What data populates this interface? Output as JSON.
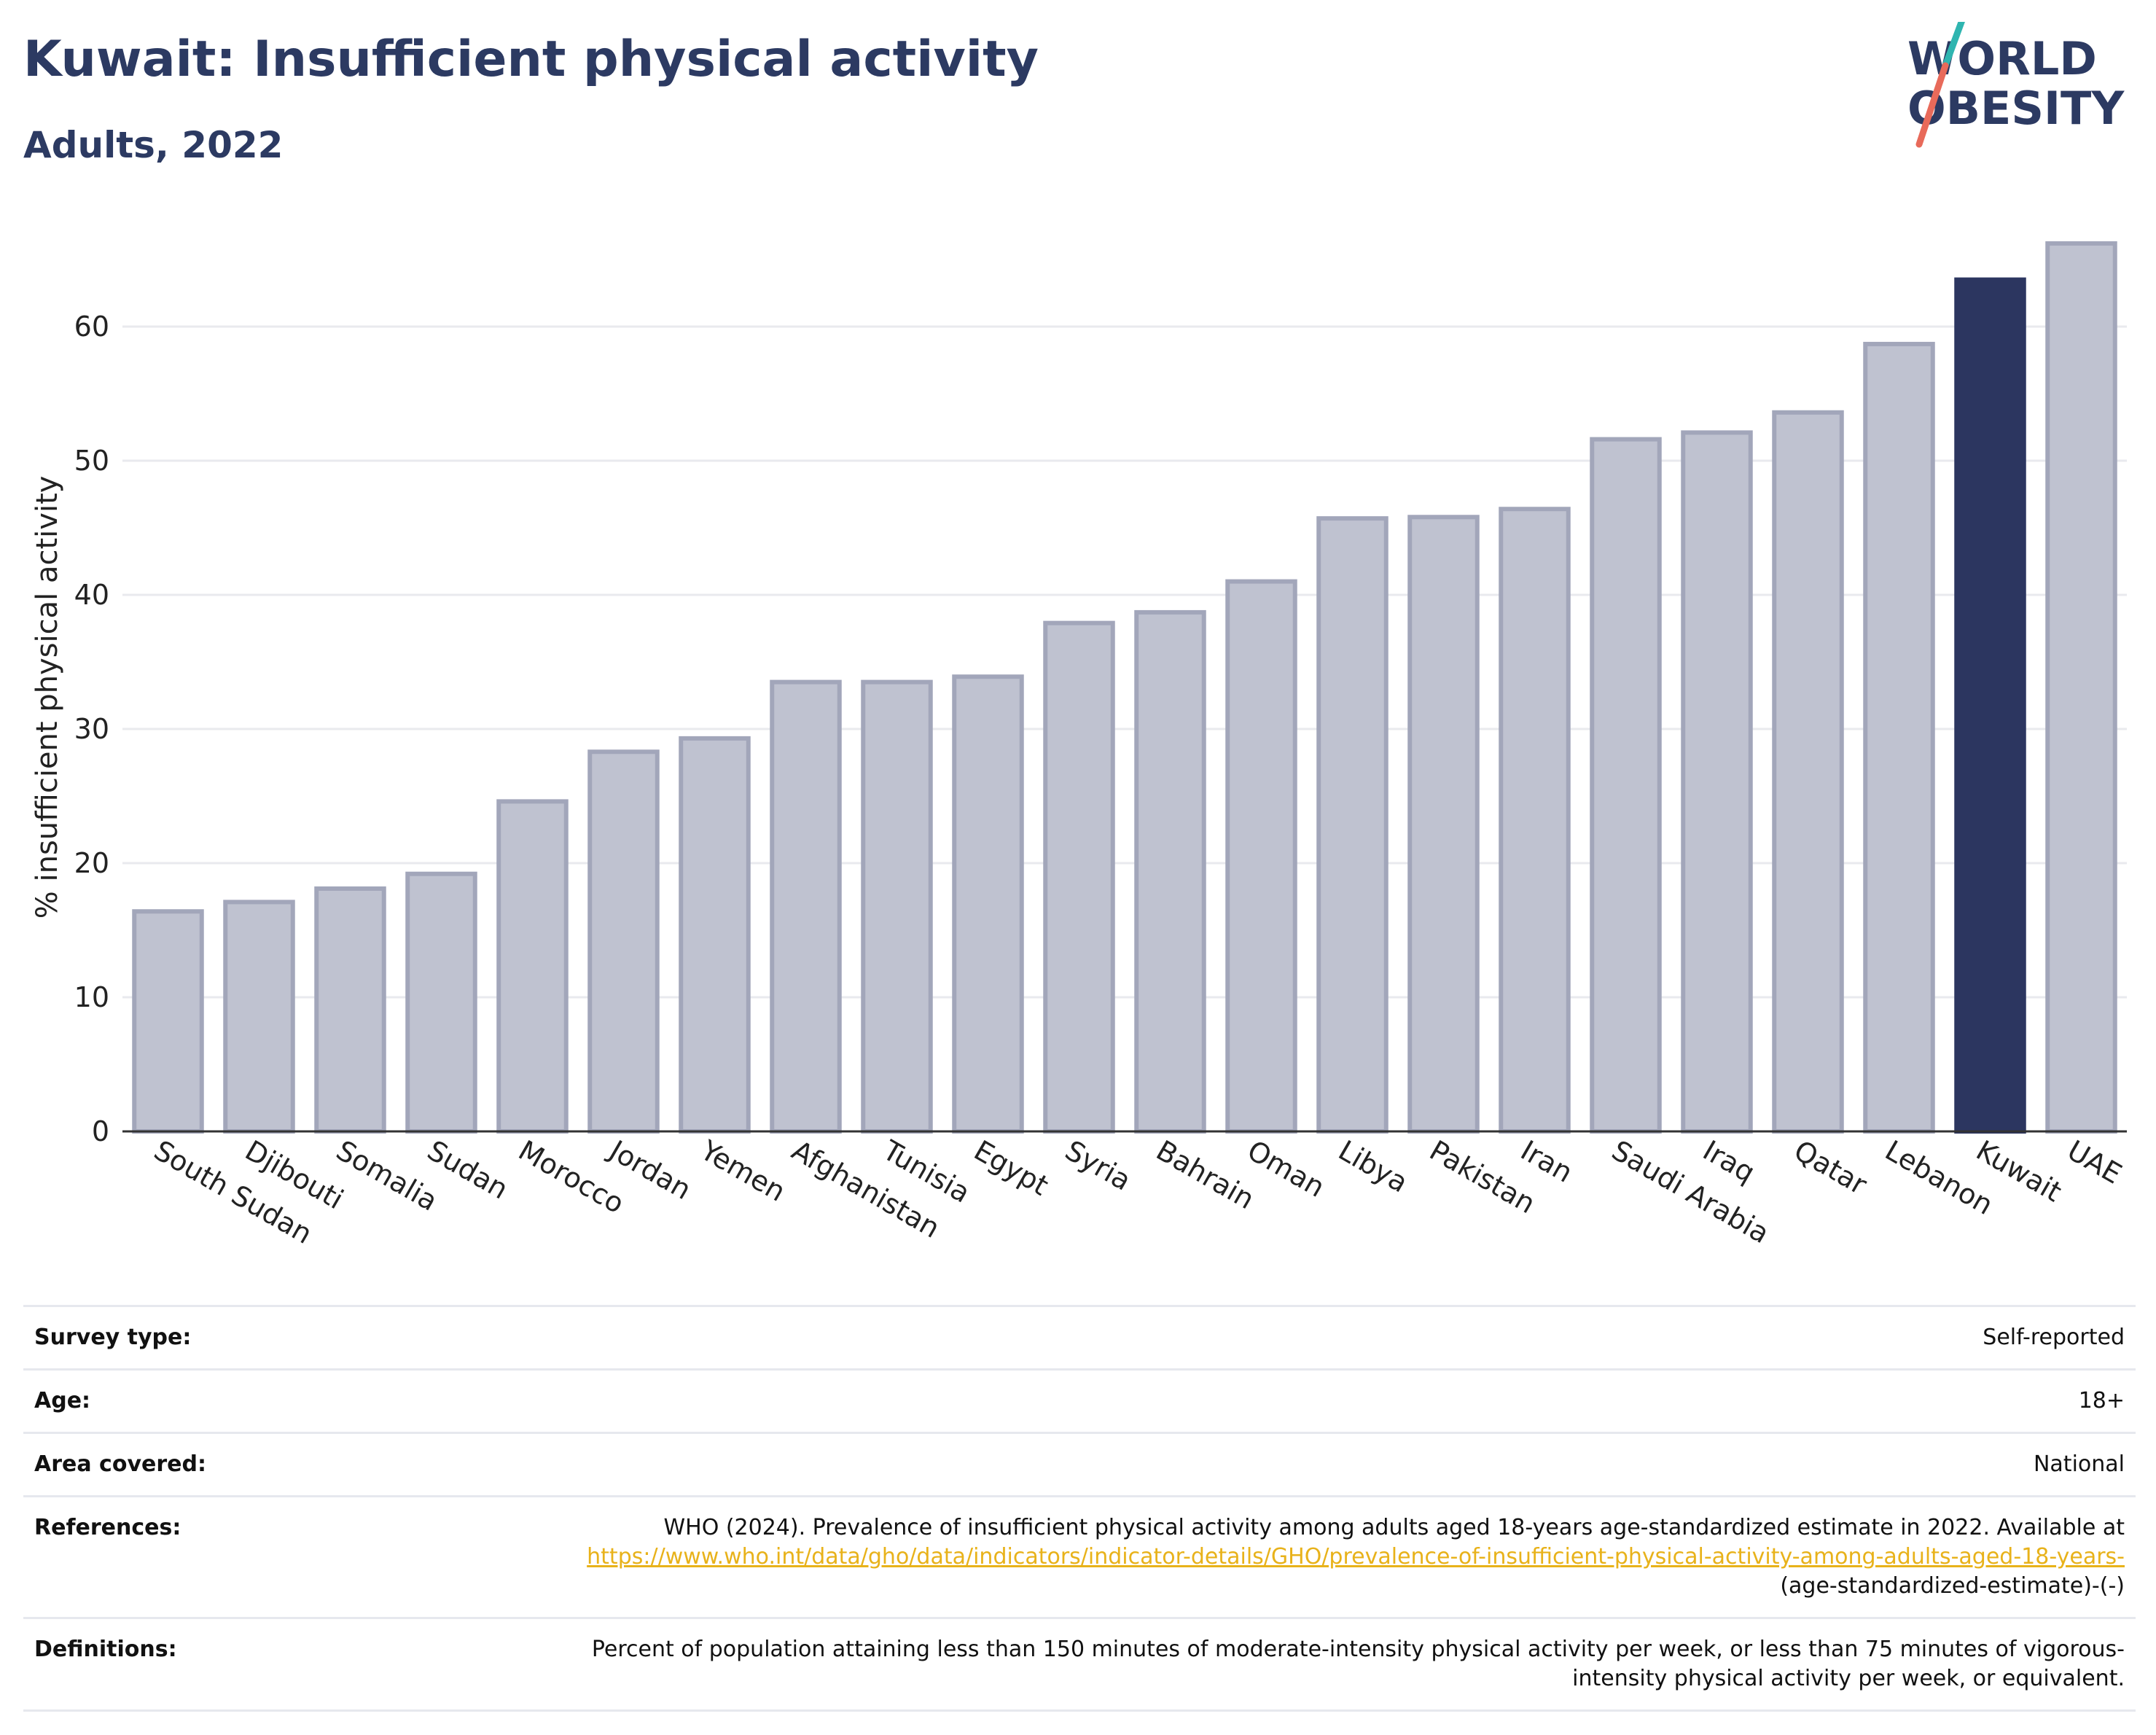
{
  "header": {
    "title": "Kuwait: Insufficient physical activity",
    "subtitle": "Adults, 2022"
  },
  "logo": {
    "line1": "WORLD",
    "line2": "OBESITY",
    "text_color": "#2c3a62",
    "slash_colors": [
      "#2fb5b0",
      "#e86a5a"
    ]
  },
  "colors": {
    "bar_default": "#bfc2d0",
    "bar_default_stroke": "#a2a6ba",
    "bar_highlight": "#2c3660",
    "grid": "#e9eaee",
    "axis": "#333333"
  },
  "chart_data": {
    "type": "bar",
    "title": "Kuwait: Insufficient physical activity",
    "subtitle": "Adults, 2022",
    "xlabel": "",
    "ylabel": "% insufficient physical activity",
    "ylim": [
      0,
      68
    ],
    "yticks": [
      0,
      10,
      20,
      30,
      40,
      50,
      60
    ],
    "grid": true,
    "highlight": "Kuwait",
    "categories": [
      "South Sudan",
      "Djibouti",
      "Somalia",
      "Sudan",
      "Morocco",
      "Jordan",
      "Yemen",
      "Afghanistan",
      "Tunisia",
      "Egypt",
      "Syria",
      "Bahrain",
      "Oman",
      "Libya",
      "Pakistan",
      "Iran",
      "Saudi Arabia",
      "Iraq",
      "Qatar",
      "Lebanon",
      "Kuwait",
      "UAE"
    ],
    "values": [
      16.4,
      17.1,
      18.1,
      19.2,
      24.6,
      28.3,
      29.3,
      33.5,
      33.5,
      33.9,
      37.9,
      38.7,
      41.0,
      45.7,
      45.8,
      46.4,
      51.6,
      52.1,
      53.6,
      58.7,
      63.5,
      66.2
    ]
  },
  "info": {
    "survey_type_label": "Survey type:",
    "survey_type_value": "Self-reported",
    "age_label": "Age:",
    "age_value": "18+",
    "area_label": "Area covered:",
    "area_value": "National",
    "references_label": "References:",
    "references_text": "WHO (2024). Prevalence of insufficient physical activity among adults aged 18-years age-standardized estimate in 2022. Available at ",
    "references_link": "https://www.who.int/data/gho/data/indicators/indicator-details/GHO/prevalence-of-insufficient-physical-activity-among-adults-aged-18-years-",
    "references_suffix": "(age-standardized-estimate)-(-)",
    "definitions_label": "Definitions:",
    "definitions_value": "Percent of population attaining less than 150 minutes of moderate-intensity physical activity per week, or less than 75 minutes of vigorous-intensity physical activity per week, or equivalent."
  }
}
